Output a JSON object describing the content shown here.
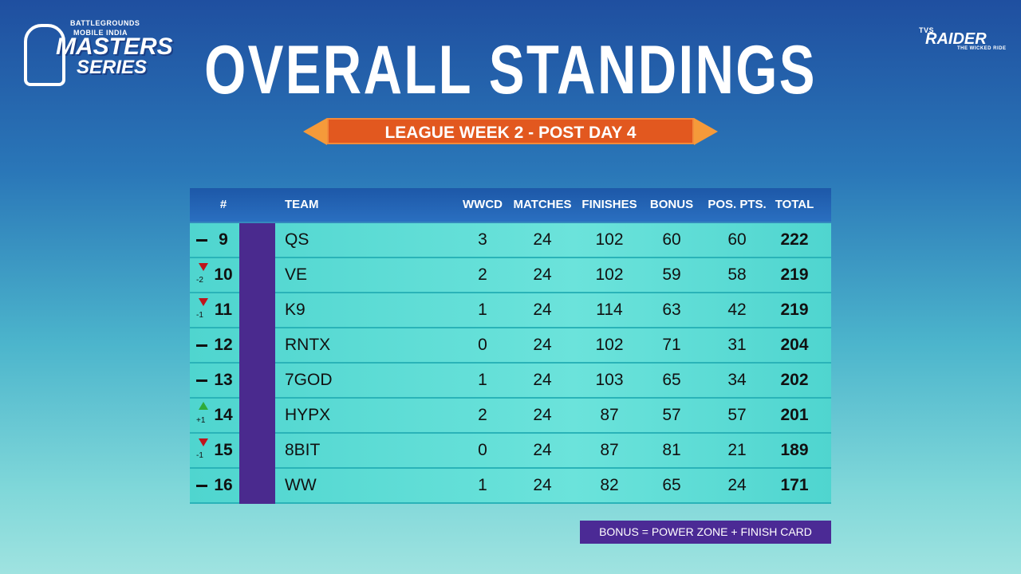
{
  "logo": {
    "line1": "BATTLEGROUNDS",
    "line2": "MOBILE INDIA",
    "line3": "MASTERS",
    "line4": "SERIES"
  },
  "sponsor": {
    "small": "TVS",
    "name": "RAIDER",
    "tagline": "THE WICKED RIDE"
  },
  "header": {
    "title": "OVERALL STANDINGS",
    "subtitle": "LEAGUE WEEK 2 - POST DAY 4"
  },
  "table": {
    "columns": [
      "#",
      "TEAM",
      "WWCD",
      "MATCHES",
      "FINISHES",
      "BONUS",
      "POS. PTS.",
      "TOTAL"
    ],
    "rows": [
      {
        "rank": 9,
        "trend": "same",
        "team": "QS",
        "wwcd": 3,
        "matches": 24,
        "finishes": 102,
        "bonus": 60,
        "pos_pts": 60,
        "total": 222
      },
      {
        "rank": 10,
        "trend": "down",
        "change": "-2",
        "team": "VE",
        "wwcd": 2,
        "matches": 24,
        "finishes": 102,
        "bonus": 59,
        "pos_pts": 58,
        "total": 219
      },
      {
        "rank": 11,
        "trend": "down",
        "change": "-1",
        "team": "K9",
        "wwcd": 1,
        "matches": 24,
        "finishes": 114,
        "bonus": 63,
        "pos_pts": 42,
        "total": 219
      },
      {
        "rank": 12,
        "trend": "same",
        "team": "RNTX",
        "wwcd": 0,
        "matches": 24,
        "finishes": 102,
        "bonus": 71,
        "pos_pts": 31,
        "total": 204
      },
      {
        "rank": 13,
        "trend": "same",
        "team": "7GOD",
        "wwcd": 1,
        "matches": 24,
        "finishes": 103,
        "bonus": 65,
        "pos_pts": 34,
        "total": 202
      },
      {
        "rank": 14,
        "trend": "up",
        "change": "+1",
        "team": "HYPX",
        "wwcd": 2,
        "matches": 24,
        "finishes": 87,
        "bonus": 57,
        "pos_pts": 57,
        "total": 201
      },
      {
        "rank": 15,
        "trend": "down",
        "change": "-1",
        "team": "8BIT",
        "wwcd": 0,
        "matches": 24,
        "finishes": 87,
        "bonus": 81,
        "pos_pts": 21,
        "total": 189
      },
      {
        "rank": 16,
        "trend": "same",
        "team": "WW",
        "wwcd": 1,
        "matches": 24,
        "finishes": 82,
        "bonus": 65,
        "pos_pts": 24,
        "total": 171
      }
    ]
  },
  "footnote": "BONUS = POWER ZONE + FINISH CARD"
}
